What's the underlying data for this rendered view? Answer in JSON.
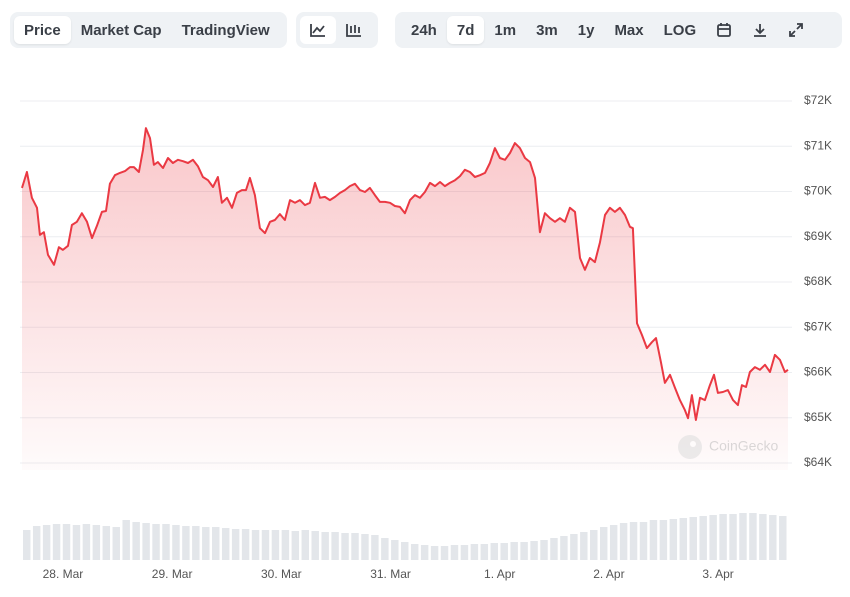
{
  "toolbar": {
    "tabs": [
      "Price",
      "Market Cap",
      "TradingView"
    ],
    "active_tab": 0,
    "ranges": [
      "24h",
      "7d",
      "1m",
      "3m",
      "1y",
      "Max",
      "LOG"
    ],
    "active_range": 1
  },
  "chart_data": {
    "type": "area",
    "color": "#ea3943",
    "watermark": "CoinGecko",
    "grid": true,
    "x": [
      -0.375,
      -0.33,
      -0.284,
      -0.238,
      -0.211,
      -0.174,
      -0.137,
      -0.082,
      -0.037,
      0,
      0.046,
      0.082,
      0.128,
      0.174,
      0.22,
      0.266,
      0.311,
      0.357,
      0.394,
      0.43,
      0.476,
      0.522,
      0.568,
      0.614,
      0.65,
      0.696,
      0.733,
      0.76,
      0.797,
      0.833,
      0.87,
      0.916,
      0.962,
      1.007,
      1.053,
      1.099,
      1.145,
      1.19,
      1.236,
      1.282,
      1.328,
      1.374,
      1.419,
      1.456,
      1.502,
      1.548,
      1.593,
      1.639,
      1.676,
      1.712,
      1.758,
      1.804,
      1.85,
      1.896,
      1.941,
      1.987,
      2.033,
      2.079,
      2.125,
      2.17,
      2.216,
      2.262,
      2.308,
      2.354,
      2.399,
      2.445,
      2.491,
      2.537,
      2.582,
      2.628,
      2.674,
      2.72,
      2.766,
      2.811,
      2.857,
      2.903,
      2.949,
      2.995,
      3.04,
      3.086,
      3.132,
      3.178,
      3.224,
      3.269,
      3.315,
      3.361,
      3.407,
      3.453,
      3.498,
      3.544,
      3.59,
      3.636,
      3.681,
      3.727,
      3.773,
      3.819,
      3.865,
      3.91,
      3.956,
      4.002,
      4.048,
      4.094,
      4.139,
      4.185,
      4.231,
      4.277,
      4.323,
      4.368,
      4.414,
      4.46,
      4.506,
      4.551,
      4.597,
      4.643,
      4.689,
      4.735,
      4.78,
      4.826,
      4.872,
      4.918,
      4.964,
      5.009,
      5.055,
      5.101,
      5.147,
      5.192,
      5.22,
      5.257,
      5.302,
      5.348,
      5.394,
      5.431,
      5.476,
      5.513,
      5.559,
      5.605,
      5.65,
      5.696,
      5.724,
      5.76,
      5.797,
      5.834,
      5.879,
      5.925,
      5.962,
      5.998,
      6.044,
      6.09,
      6.136,
      6.181,
      6.218,
      6.255,
      6.291,
      6.337,
      6.383,
      6.429,
      6.475,
      6.52,
      6.566,
      6.612,
      6.64
    ],
    "values": [
      70080,
      70430,
      69860,
      69640,
      69040,
      69100,
      68600,
      68380,
      68770,
      68710,
      68800,
      69260,
      69330,
      69520,
      69330,
      68970,
      69240,
      69550,
      69570,
      70170,
      70360,
      70410,
      70450,
      70540,
      70540,
      70430,
      70920,
      71400,
      71180,
      70590,
      70650,
      70520,
      70740,
      70630,
      70700,
      70670,
      70630,
      70700,
      70560,
      70320,
      70250,
      70100,
      70320,
      69750,
      69860,
      69640,
      69970,
      70030,
      70030,
      70300,
      69920,
      69190,
      69080,
      69330,
      69370,
      69500,
      69370,
      69810,
      69750,
      69810,
      69700,
      69750,
      70190,
      69860,
      69880,
      69810,
      69880,
      69970,
      70030,
      70120,
      70170,
      70030,
      69990,
      70080,
      69920,
      69770,
      69770,
      69750,
      69680,
      69660,
      69520,
      69810,
      69920,
      69860,
      69990,
      70190,
      70120,
      70210,
      70120,
      70190,
      70250,
      70340,
      70480,
      70430,
      70320,
      70360,
      70410,
      70630,
      70960,
      70740,
      70700,
      70850,
      71070,
      70960,
      70740,
      70650,
      70300,
      69100,
      69520,
      69410,
      69330,
      69410,
      69330,
      69640,
      69550,
      68530,
      68270,
      68530,
      68440,
      68880,
      69480,
      69640,
      69550,
      69640,
      69480,
      69220,
      69190,
      67090,
      66830,
      66540,
      66670,
      66760,
      66230,
      65770,
      65950,
      65660,
      65390,
      65170,
      64990,
      65500,
      64950,
      65440,
      65390,
      65720,
      65950,
      65550,
      65570,
      65610,
      65390,
      65280,
      65720,
      65680,
      66010,
      66120,
      66060,
      66170,
      66010,
      66390,
      66280,
      66010,
      66060
    ],
    "xlim": [
      -0.375,
      6.64
    ],
    "xticks": [
      {
        "value": 0,
        "label": "28. Mar"
      },
      {
        "value": 1,
        "label": "29. Mar"
      },
      {
        "value": 2,
        "label": "30. Mar"
      },
      {
        "value": 3,
        "label": "31. Mar"
      },
      {
        "value": 4,
        "label": "1. Apr"
      },
      {
        "value": 5,
        "label": "2. Apr"
      },
      {
        "value": 6,
        "label": "3. Apr"
      }
    ],
    "ylim": [
      64000,
      72000
    ],
    "yticks": [
      {
        "value": 64000,
        "label": "$64K"
      },
      {
        "value": 65000,
        "label": "$65K"
      },
      {
        "value": 66000,
        "label": "$66K"
      },
      {
        "value": 67000,
        "label": "$67K"
      },
      {
        "value": 68000,
        "label": "$68K"
      },
      {
        "value": 69000,
        "label": "$69K"
      },
      {
        "value": 70000,
        "label": "$70K"
      },
      {
        "value": 71000,
        "label": "$71K"
      },
      {
        "value": 72000,
        "label": "$72K"
      }
    ],
    "volume": {
      "color": "#e3e6ea",
      "ylim": [
        0,
        60
      ],
      "values": [
        30,
        34,
        35,
        36,
        36,
        35,
        36,
        35,
        34,
        33,
        40,
        38,
        37,
        36,
        36,
        35,
        34,
        34,
        33,
        33,
        32,
        31,
        31,
        30,
        30,
        30,
        30,
        29,
        30,
        29,
        28,
        28,
        27,
        27,
        26,
        25,
        22,
        20,
        18,
        16,
        15,
        14,
        14,
        15,
        15,
        16,
        16,
        17,
        17,
        18,
        18,
        19,
        20,
        22,
        24,
        26,
        28,
        30,
        33,
        35,
        37,
        38,
        38,
        40,
        40,
        41,
        42,
        43,
        44,
        45,
        46,
        46,
        47,
        47,
        46,
        45,
        44
      ]
    }
  }
}
